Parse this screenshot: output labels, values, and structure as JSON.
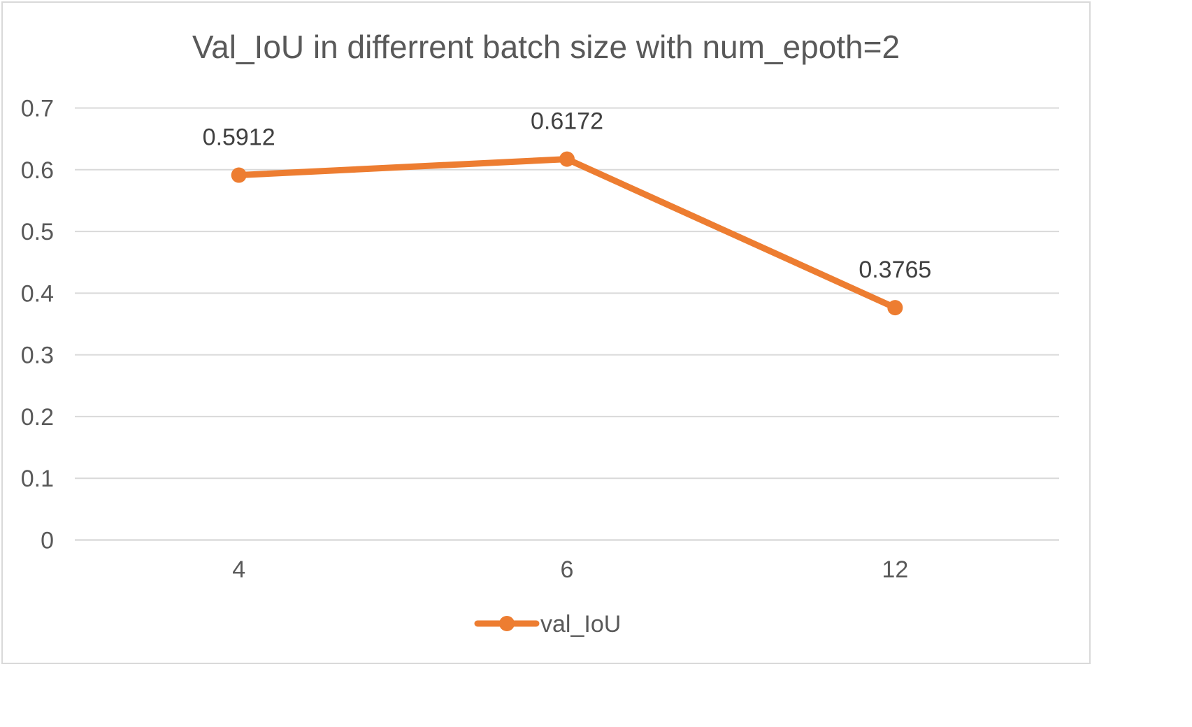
{
  "chart_data": {
    "type": "line",
    "title": "Val_IoU in differrent batch size with  num_epoth=2",
    "categories": [
      "4",
      "6",
      "12"
    ],
    "series": [
      {
        "name": "val_IoU",
        "values": [
          0.5912,
          0.6172,
          0.3765
        ],
        "color": "#ed7d31"
      }
    ],
    "data_labels": [
      "0.5912",
      "0.6172",
      "0.3765"
    ],
    "ylim": [
      0,
      0.7
    ],
    "yticks": [
      "0",
      "0.1",
      "0.2",
      "0.3",
      "0.4",
      "0.5",
      "0.6",
      "0.7"
    ],
    "xlabel": "",
    "ylabel": "",
    "grid": true,
    "legend_position": "bottom"
  }
}
